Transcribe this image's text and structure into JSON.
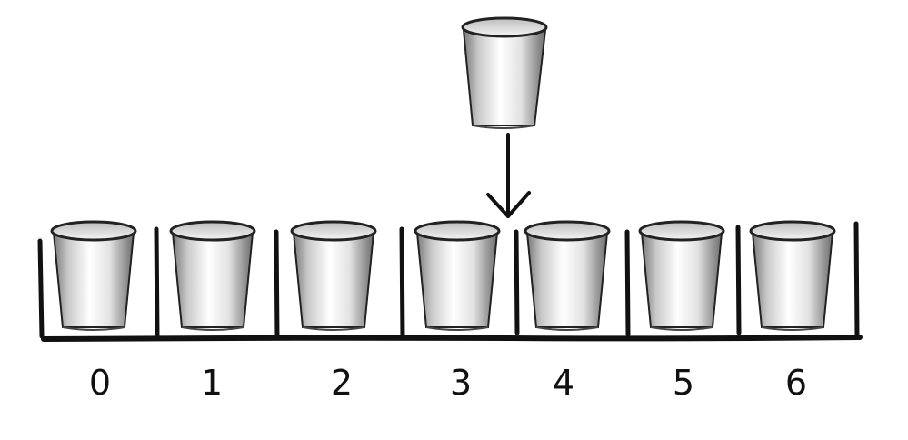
{
  "diagram": {
    "slot_labels": [
      "0",
      "1",
      "2",
      "3",
      "4",
      "5",
      "6"
    ],
    "insert_between": [
      3,
      4
    ],
    "colors": {
      "ink": "#111111",
      "cup_light": "#ffffff",
      "cup_shade": "#777777"
    }
  }
}
